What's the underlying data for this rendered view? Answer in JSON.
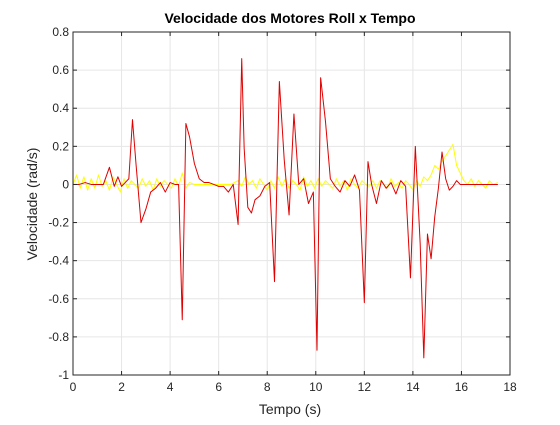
{
  "chart_data": {
    "type": "line",
    "title": "Velocidade dos Motores Roll x Tempo",
    "xlabel": "Tempo (s)",
    "ylabel": "Velocidade (rad/s)",
    "xlim": [
      0,
      18
    ],
    "ylim": [
      -1,
      0.8
    ],
    "xticks": [
      0,
      2,
      4,
      6,
      8,
      10,
      12,
      14,
      16,
      18
    ],
    "yticks": [
      -1,
      -0.8,
      -0.6,
      -0.4,
      -0.2,
      0,
      0.2,
      0.4,
      0.6,
      0.8
    ],
    "grid": true,
    "box": true,
    "series": [
      {
        "color": "#ffff00",
        "x": [
          0.0,
          0.15,
          0.3,
          0.45,
          0.6,
          0.75,
          0.9,
          1.05,
          1.2,
          1.35,
          1.5,
          1.65,
          1.8,
          1.95,
          2.1,
          2.25,
          2.4,
          2.55,
          2.7,
          2.85,
          3.0,
          3.15,
          3.3,
          3.45,
          3.6,
          3.75,
          3.9,
          4.05,
          4.2,
          4.35,
          4.5,
          4.65,
          4.8,
          5.0,
          5.5,
          6.0,
          6.5,
          6.8,
          6.95,
          7.1,
          7.25,
          7.4,
          7.55,
          7.7,
          7.85,
          8.0,
          8.15,
          8.3,
          8.45,
          8.6,
          8.75,
          8.9,
          9.05,
          9.2,
          9.35,
          9.5,
          9.65,
          9.8,
          9.95,
          10.1,
          10.25,
          10.4,
          10.55,
          10.7,
          10.85,
          11.0,
          11.15,
          11.3,
          11.45,
          11.6,
          11.75,
          11.9,
          12.05,
          12.2,
          12.35,
          12.5,
          12.65,
          12.8,
          12.95,
          13.1,
          13.25,
          13.4,
          13.55,
          13.7,
          13.85,
          14.0,
          14.15,
          14.3,
          14.45,
          14.6,
          14.75,
          14.9,
          15.05,
          15.2,
          15.35,
          15.5,
          15.65,
          15.8,
          15.95,
          16.1,
          16.25,
          16.4,
          16.55,
          16.7,
          16.85,
          17.0,
          17.15,
          17.3,
          17.5
        ],
        "y": [
          0.0,
          0.05,
          -0.02,
          0.04,
          -0.03,
          0.03,
          -0.02,
          0.05,
          -0.01,
          0.02,
          -0.03,
          0.04,
          0.0,
          -0.04,
          0.03,
          -0.02,
          0.02,
          0.0,
          -0.02,
          0.03,
          -0.01,
          0.02,
          -0.03,
          0.03,
          -0.01,
          0.02,
          0.0,
          -0.02,
          0.03,
          -0.01,
          0.06,
          -0.02,
          0.01,
          0.0,
          0.0,
          0.0,
          0.0,
          0.02,
          -0.01,
          0.04,
          0.0,
          0.02,
          -0.02,
          0.03,
          0.0,
          -0.03,
          0.02,
          -0.02,
          0.04,
          -0.01,
          0.03,
          -0.02,
          0.02,
          0.0,
          -0.03,
          0.04,
          -0.01,
          0.02,
          -0.02,
          0.03,
          -0.01,
          0.02,
          0.0,
          -0.02,
          0.03,
          -0.01,
          0.02,
          -0.03,
          0.03,
          0.0,
          -0.02,
          0.02,
          0.0,
          -0.01,
          0.02,
          -0.02,
          0.02,
          0.0,
          -0.02,
          0.03,
          -0.01,
          0.01,
          -0.02,
          0.02,
          0.0,
          -0.03,
          0.02,
          -0.01,
          0.04,
          0.02,
          0.05,
          0.1,
          0.08,
          0.12,
          0.15,
          0.18,
          0.21,
          0.1,
          0.06,
          0.02,
          0.0,
          0.03,
          -0.01,
          0.02,
          0.0,
          -0.02,
          0.02,
          0.0,
          0.01
        ]
      },
      {
        "color": "#e00000",
        "x": [
          0.0,
          0.25,
          0.5,
          0.75,
          1.0,
          1.25,
          1.5,
          1.7,
          1.85,
          2.0,
          2.15,
          2.3,
          2.45,
          2.6,
          2.8,
          3.0,
          3.2,
          3.4,
          3.6,
          3.8,
          4.0,
          4.2,
          4.35,
          4.5,
          4.65,
          4.8,
          5.0,
          5.2,
          5.4,
          5.6,
          5.8,
          6.0,
          6.2,
          6.4,
          6.6,
          6.8,
          6.95,
          7.05,
          7.2,
          7.35,
          7.5,
          7.7,
          7.9,
          8.1,
          8.3,
          8.5,
          8.7,
          8.9,
          9.1,
          9.3,
          9.5,
          9.7,
          9.9,
          10.05,
          10.2,
          10.4,
          10.6,
          10.8,
          11.0,
          11.2,
          11.4,
          11.6,
          11.8,
          12.0,
          12.15,
          12.3,
          12.5,
          12.7,
          12.9,
          13.1,
          13.3,
          13.5,
          13.7,
          13.9,
          14.1,
          14.3,
          14.45,
          14.6,
          14.75,
          14.9,
          15.05,
          15.2,
          15.35,
          15.5,
          15.65,
          15.8,
          15.95,
          16.1,
          16.3,
          16.5,
          16.7,
          16.9,
          17.1,
          17.3,
          17.5
        ],
        "y": [
          0.0,
          0.0,
          0.01,
          0.0,
          0.0,
          0.0,
          0.09,
          -0.01,
          0.04,
          -0.01,
          0.01,
          0.03,
          0.34,
          0.1,
          -0.2,
          -0.13,
          -0.04,
          -0.02,
          0.01,
          -0.04,
          0.01,
          0.0,
          0.0,
          -0.71,
          0.32,
          0.25,
          0.11,
          0.03,
          0.01,
          0.01,
          0.0,
          -0.01,
          -0.01,
          -0.04,
          0.0,
          -0.21,
          0.66,
          0.19,
          -0.12,
          -0.15,
          -0.08,
          -0.06,
          -0.01,
          0.01,
          -0.51,
          0.54,
          0.13,
          -0.16,
          0.37,
          0.0,
          0.03,
          -0.1,
          -0.04,
          -0.87,
          0.56,
          0.33,
          0.03,
          -0.01,
          -0.04,
          0.02,
          -0.01,
          0.05,
          -0.03,
          -0.62,
          0.12,
          0.0,
          -0.1,
          0.02,
          -0.02,
          0.01,
          -0.05,
          0.02,
          -0.01,
          -0.49,
          0.2,
          -0.31,
          -0.91,
          -0.26,
          -0.39,
          -0.17,
          -0.02,
          0.17,
          0.03,
          -0.03,
          -0.01,
          0.02,
          0.0,
          0.0,
          0.0,
          0.0,
          0.0,
          0.0,
          0.0,
          0.0,
          0.0
        ]
      }
    ]
  }
}
